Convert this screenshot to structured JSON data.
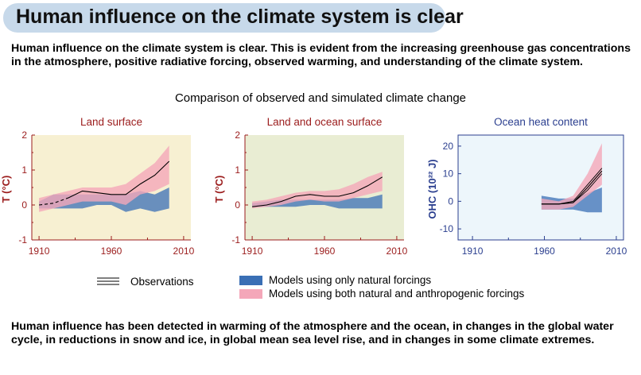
{
  "header": {
    "title": "Human influence on the climate system is clear"
  },
  "intro_text": "Human influence on the climate system is clear. This is evident from the increasing greenhouse gas concentrations in the atmosphere, positive radiative forcing, observed warming, and understanding of the climate system.",
  "figure_title": "Comparison of observed and simulated climate change",
  "legend": {
    "observations": "Observations",
    "natural": "Models using only natural forcings",
    "both": "Models using both natural and anthropogenic forcings"
  },
  "colors": {
    "natural": "#3a6fb5",
    "both": "#f4a7b9",
    "panel_red_axis": "#9b1c1c",
    "panel_blue_axis": "#2b3f8f",
    "bg_land": "#f7f0d2",
    "bg_landocean": "#e9edd3",
    "bg_ocean": "#edf6fb",
    "banner": "#c7d9ea"
  },
  "chart_data": [
    {
      "type": "area",
      "title": "Land surface",
      "ylabel": "T (°C)",
      "ylim": [
        -1,
        2
      ],
      "xlim": [
        1905,
        2015
      ],
      "yticks": [
        -1,
        0,
        1,
        2
      ],
      "xticks": [
        1910,
        1960,
        2010
      ],
      "natural_forcings": {
        "x": [
          1910,
          1920,
          1930,
          1940,
          1950,
          1960,
          1970,
          1980,
          1990,
          2000
        ],
        "upper": [
          0.1,
          0.3,
          0.3,
          0.3,
          0.3,
          0.3,
          0.3,
          0.4,
          0.3,
          0.5
        ],
        "lower": [
          -0.1,
          -0.1,
          -0.1,
          -0.1,
          0,
          0,
          -0.2,
          -0.1,
          -0.2,
          -0.1
        ]
      },
      "both_forcings": {
        "x": [
          1910,
          1920,
          1930,
          1940,
          1950,
          1960,
          1970,
          1980,
          1990,
          2000
        ],
        "upper": [
          0.2,
          0.3,
          0.4,
          0.5,
          0.5,
          0.5,
          0.6,
          0.9,
          1.2,
          1.7
        ],
        "lower": [
          -0.2,
          -0.1,
          0,
          0.1,
          0.1,
          0.1,
          0,
          0.3,
          0.4,
          0.6
        ]
      },
      "observations": {
        "x": [
          1910,
          1920,
          1930,
          1940,
          1950,
          1960,
          1970,
          1980,
          1990,
          2000
        ],
        "y": [
          0,
          0.05,
          0.2,
          0.4,
          0.35,
          0.3,
          0.3,
          0.6,
          0.85,
          1.25
        ],
        "dashed_until": 1930
      }
    },
    {
      "type": "area",
      "title": "Land and ocean surface",
      "ylabel": "T (°C)",
      "ylim": [
        -1,
        2
      ],
      "xlim": [
        1905,
        2015
      ],
      "yticks": [
        -1,
        0,
        1,
        2
      ],
      "xticks": [
        1910,
        1960,
        2010
      ],
      "natural_forcings": {
        "x": [
          1910,
          1920,
          1930,
          1940,
          1950,
          1960,
          1970,
          1980,
          1990,
          2000
        ],
        "upper": [
          0.05,
          0.1,
          0.15,
          0.15,
          0.15,
          0.15,
          0.15,
          0.2,
          0.2,
          0.3
        ],
        "lower": [
          -0.05,
          -0.05,
          -0.05,
          -0.05,
          0,
          0,
          -0.1,
          -0.1,
          -0.1,
          -0.1
        ]
      },
      "both_forcings": {
        "x": [
          1910,
          1920,
          1930,
          1940,
          1950,
          1960,
          1970,
          1980,
          1990,
          2000
        ],
        "upper": [
          0.1,
          0.15,
          0.25,
          0.35,
          0.4,
          0.4,
          0.45,
          0.6,
          0.8,
          0.95
        ],
        "lower": [
          -0.1,
          -0.05,
          0,
          0.1,
          0.15,
          0.1,
          0.1,
          0.2,
          0.3,
          0.4
        ]
      },
      "observations": {
        "x": [
          1910,
          1920,
          1930,
          1940,
          1950,
          1960,
          1970,
          1980,
          1990,
          2000
        ],
        "y": [
          -0.05,
          0,
          0.1,
          0.25,
          0.3,
          0.25,
          0.25,
          0.35,
          0.55,
          0.8
        ]
      }
    },
    {
      "type": "area",
      "title": "Ocean heat content",
      "ylabel": "OHC (10²² J)",
      "ylim": [
        -14,
        24
      ],
      "xlim": [
        1900,
        2015
      ],
      "yticks": [
        -10,
        0,
        10,
        20
      ],
      "xticks": [
        1910,
        1960,
        2010
      ],
      "natural_forcings": {
        "x": [
          1958,
          1970,
          1980,
          1990,
          2000
        ],
        "upper": [
          2,
          1,
          1,
          3,
          5
        ],
        "lower": [
          -3,
          -3,
          -3,
          -4,
          -4
        ]
      },
      "both_forcings": {
        "x": [
          1958,
          1970,
          1980,
          1990,
          2000
        ],
        "upper": [
          1,
          0,
          2,
          10,
          21
        ],
        "lower": [
          -3,
          -3,
          -2,
          2,
          6
        ]
      },
      "observations": {
        "x": [
          1958,
          1970,
          1980,
          1990,
          2000
        ],
        "y": [
          -1,
          -1,
          -0.5,
          5,
          11
        ],
        "y_alt1": [
          -1,
          -1,
          -0.5,
          4,
          10
        ],
        "y_alt2": [
          -1,
          -1,
          0,
          6,
          12
        ]
      }
    }
  ],
  "outro_text": "Human influence has been detected in warming of the atmosphere and the ocean, in changes in the global water cycle, in reductions in snow and ice, in global mean sea level rise, and in changes in some climate extremes."
}
